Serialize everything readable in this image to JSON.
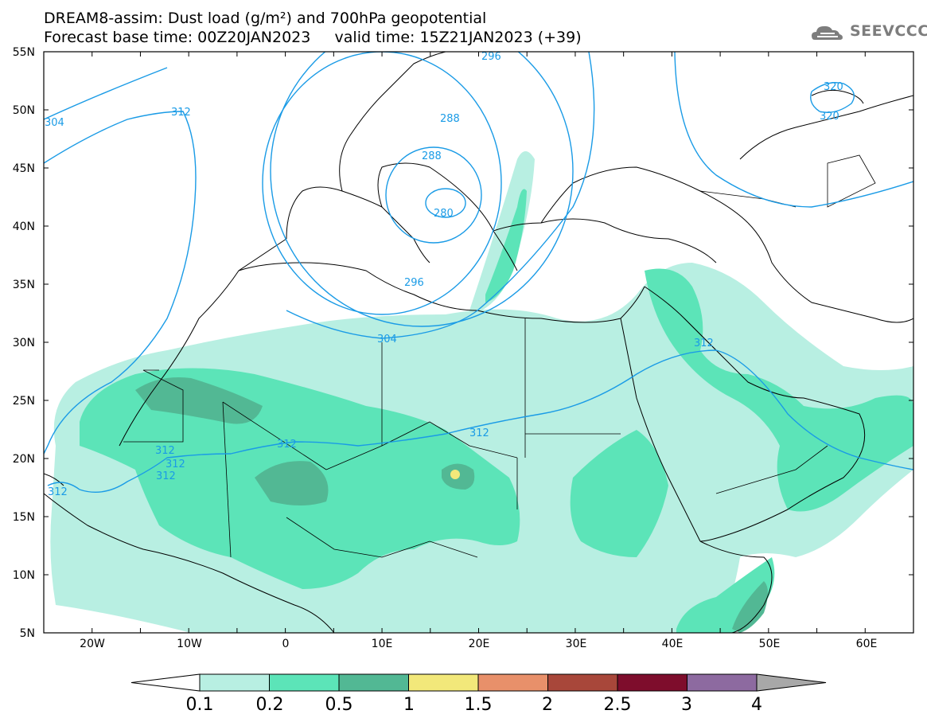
{
  "header": {
    "title_line1": "DREAM8-assim: Dust load (g/m²) and 700hPa geopotential",
    "title_line2": "Forecast base time: 00Z20JAN2023     valid time: 15Z21JAN2023 (+39)"
  },
  "logo": {
    "text": "SEEVCCC",
    "icon": "cloud-icon"
  },
  "map": {
    "lon_labels": [
      "20W",
      "10W",
      "0",
      "10E",
      "20E",
      "30E",
      "40E",
      "50E",
      "60E"
    ],
    "lat_labels": [
      "55N",
      "50N",
      "45N",
      "40N",
      "35N",
      "30N",
      "25N",
      "20N",
      "15N",
      "10N",
      "5N"
    ],
    "contour_labels": [
      "296",
      "288",
      "288",
      "280",
      "296",
      "304",
      "312",
      "312",
      "312",
      "312",
      "312",
      "312",
      "312",
      "312",
      "320",
      "320",
      "304"
    ]
  },
  "colorbar": {
    "colors": [
      "#ffffff",
      "#b8efe2",
      "#5ce4b8",
      "#52b894",
      "#f2e87a",
      "#e8906a",
      "#a8473a",
      "#7e0d2c",
      "#8d6aa0",
      "#a8a8a8"
    ],
    "labels": [
      "0.1",
      "0.2",
      "0.5",
      "1",
      "1.5",
      "2",
      "2.5",
      "3",
      "4"
    ]
  },
  "colors": {
    "contour": "#1a9be6",
    "border": "#000000"
  }
}
